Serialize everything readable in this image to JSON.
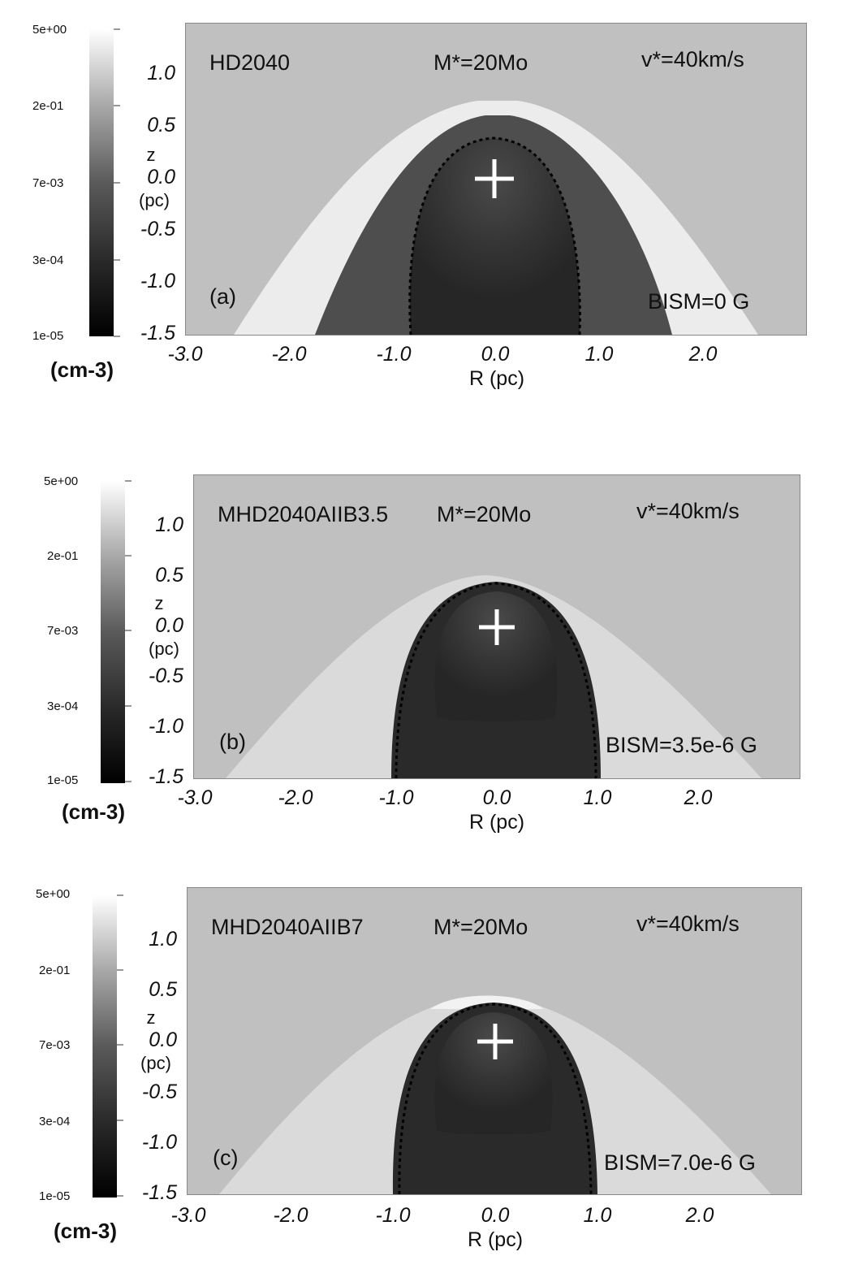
{
  "colorbar": {
    "ticks": [
      "5e+00",
      "2e-01",
      "7e-03",
      "3e-04",
      "1e-05"
    ],
    "unit": "(cm-3)"
  },
  "axes": {
    "z_ticks": [
      "1.0",
      "0.5",
      "0.0",
      "-0.5",
      "-1.0",
      "-1.5"
    ],
    "z_label_top": "z",
    "z_label_bottom": "(pc)",
    "r_ticks": [
      "-3.0",
      "-2.0",
      "-1.0",
      "0.0",
      "1.0",
      "2.0"
    ],
    "r_label": "R (pc)"
  },
  "panels": [
    {
      "model": "HD2040",
      "mass": "M*=20Mo",
      "velocity": "v*=40km/s",
      "letter": "(a)",
      "bfield": "BISM=0 G"
    },
    {
      "model": "MHD2040AIIB3.5",
      "mass": "M*=20Mo",
      "velocity": "v*=40km/s",
      "letter": "(b)",
      "bfield": "BISM=3.5e-6 G"
    },
    {
      "model": "MHD2040AIIB7",
      "mass": "M*=20Mo",
      "velocity": "v*=40km/s",
      "letter": "(c)",
      "bfield": "BISM=7.0e-6 G"
    }
  ]
}
